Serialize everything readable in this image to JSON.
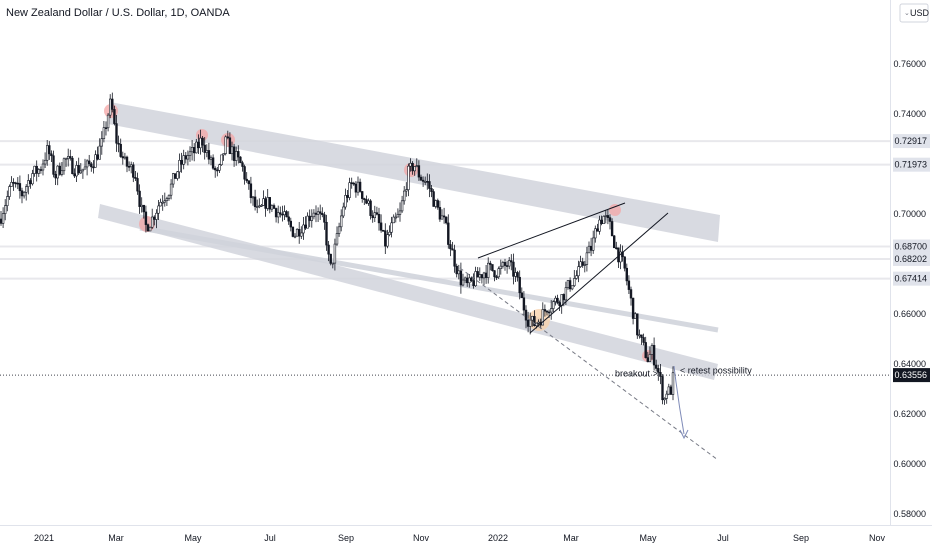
{
  "header": {
    "title": "New Zealand Dollar / U.S. Dollar, 1D, OANDA",
    "currency_button": "USD",
    "currency_caret": "⌄"
  },
  "colors": {
    "up": "#131722",
    "down": "#131722",
    "channel_fill": "#d1d4dc",
    "highlight_red": "#f4a5a5",
    "highlight_orange": "#f8d0a8",
    "price_tag_bg": "#131722",
    "level_tag_bg": "#e0e3eb",
    "trendline": "#131722",
    "dashed_projection": "#787b86",
    "arrow": "#7f8bb8"
  },
  "chart_data": {
    "type": "candlestick",
    "title": "New Zealand Dollar / U.S. Dollar, 1D, OANDA",
    "x_ticks": [
      "2021",
      "Mar",
      "May",
      "Jul",
      "Sep",
      "Nov",
      "2022",
      "Mar",
      "May",
      "Jul",
      "Sep",
      "Nov"
    ],
    "y_ticks": [
      "0.76000",
      "0.74000",
      "0.70000",
      "0.66000",
      "0.64000",
      "0.62000",
      "0.60000",
      "0.58000"
    ],
    "ylim": [
      0.574,
      0.776
    ],
    "current_price": "0.63556",
    "horizontal_levels": [
      {
        "label": "0.72917",
        "value": 0.72917
      },
      {
        "label": "0.71973",
        "value": 0.71973
      },
      {
        "label": "0.68700",
        "value": 0.687
      },
      {
        "label": "0.68202",
        "value": 0.68202
      },
      {
        "label": "0.67414",
        "value": 0.67414
      }
    ],
    "price_path": [
      [
        0,
        0.698
      ],
      [
        4,
        0.703
      ],
      [
        12,
        0.712
      ],
      [
        22,
        0.708
      ],
      [
        32,
        0.716
      ],
      [
        40,
        0.718
      ],
      [
        48,
        0.726
      ],
      [
        55,
        0.715
      ],
      [
        65,
        0.722
      ],
      [
        75,
        0.718
      ],
      [
        85,
        0.718
      ],
      [
        95,
        0.722
      ],
      [
        102,
        0.728
      ],
      [
        108,
        0.74
      ],
      [
        111,
        0.745
      ],
      [
        116,
        0.73
      ],
      [
        125,
        0.72
      ],
      [
        135,
        0.717
      ],
      [
        141,
        0.702
      ],
      [
        146,
        0.695
      ],
      [
        152,
        0.698
      ],
      [
        160,
        0.705
      ],
      [
        170,
        0.71
      ],
      [
        178,
        0.718
      ],
      [
        186,
        0.723
      ],
      [
        195,
        0.725
      ],
      [
        202,
        0.73
      ],
      [
        210,
        0.721
      ],
      [
        218,
        0.715
      ],
      [
        226,
        0.729
      ],
      [
        235,
        0.723
      ],
      [
        242,
        0.719
      ],
      [
        250,
        0.708
      ],
      [
        258,
        0.7
      ],
      [
        266,
        0.705
      ],
      [
        275,
        0.702
      ],
      [
        285,
        0.698
      ],
      [
        295,
        0.692
      ],
      [
        305,
        0.697
      ],
      [
        315,
        0.702
      ],
      [
        325,
        0.695
      ],
      [
        330,
        0.677
      ],
      [
        337,
        0.69
      ],
      [
        344,
        0.705
      ],
      [
        352,
        0.712
      ],
      [
        360,
        0.71
      ],
      [
        370,
        0.702
      ],
      [
        378,
        0.697
      ],
      [
        385,
        0.688
      ],
      [
        392,
        0.695
      ],
      [
        400,
        0.7
      ],
      [
        408,
        0.716
      ],
      [
        414,
        0.72
      ],
      [
        420,
        0.715
      ],
      [
        428,
        0.712
      ],
      [
        436,
        0.703
      ],
      [
        444,
        0.697
      ],
      [
        452,
        0.685
      ],
      [
        460,
        0.674
      ],
      [
        468,
        0.671
      ],
      [
        478,
        0.675
      ],
      [
        488,
        0.678
      ],
      [
        498,
        0.677
      ],
      [
        508,
        0.68
      ],
      [
        516,
        0.675
      ],
      [
        522,
        0.665
      ],
      [
        528,
        0.658
      ],
      [
        534,
        0.656
      ],
      [
        540,
        0.658
      ],
      [
        547,
        0.663
      ],
      [
        555,
        0.665
      ],
      [
        562,
        0.667
      ],
      [
        570,
        0.672
      ],
      [
        578,
        0.676
      ],
      [
        586,
        0.683
      ],
      [
        592,
        0.687
      ],
      [
        598,
        0.697
      ],
      [
        604,
        0.699
      ],
      [
        610,
        0.695
      ],
      [
        617,
        0.685
      ],
      [
        624,
        0.679
      ],
      [
        631,
        0.665
      ],
      [
        638,
        0.652
      ],
      [
        644,
        0.646
      ],
      [
        648,
        0.642
      ],
      [
        652,
        0.645
      ],
      [
        656,
        0.64
      ],
      [
        660,
        0.634
      ],
      [
        664,
        0.625
      ],
      [
        667,
        0.63
      ],
      [
        670,
        0.628
      ],
      [
        674,
        0.636
      ]
    ],
    "annotations": [
      {
        "text": "breakout >",
        "price": 0.6362
      },
      {
        "text": "< retest possibility",
        "price": 0.6375
      }
    ]
  }
}
